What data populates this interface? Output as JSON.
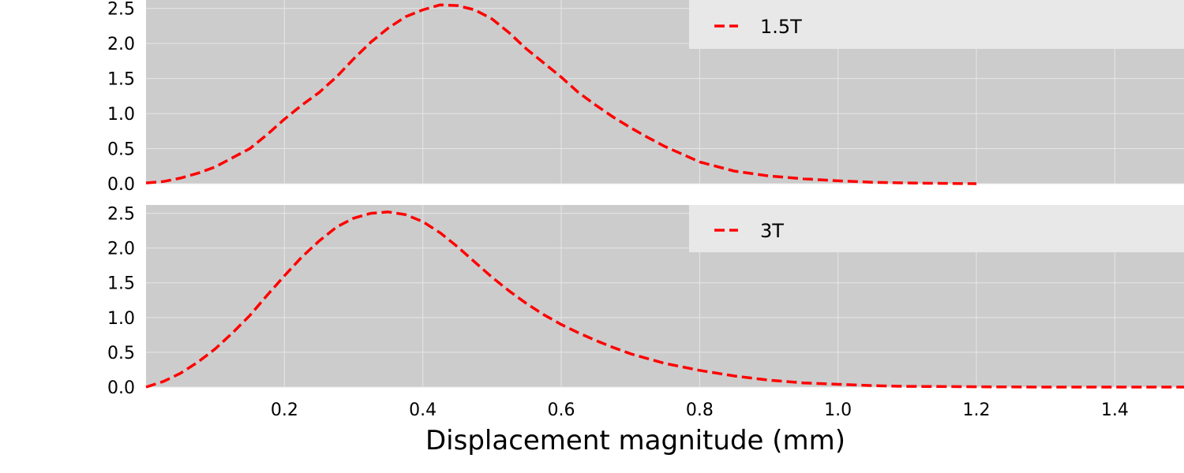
{
  "chart_data": [
    {
      "type": "line",
      "xlim": [
        0.0,
        1.5
      ],
      "ylim": [
        0.0,
        2.6
      ],
      "grid": true,
      "legend_placement": "top-right",
      "xticks": [
        "0.2",
        "0.4",
        "0.6",
        "0.8",
        "1.0",
        "1.2",
        "1.4"
      ],
      "yticks": [
        "0.0",
        "0.5",
        "1.0",
        "1.5",
        "2.0",
        "2.5"
      ],
      "series": [
        {
          "name": "1.5T",
          "color": "#ff0000",
          "style": "dashed",
          "x": [
            0.0,
            0.025,
            0.05,
            0.075,
            0.1,
            0.125,
            0.15,
            0.175,
            0.2,
            0.225,
            0.25,
            0.275,
            0.3,
            0.325,
            0.35,
            0.375,
            0.4,
            0.425,
            0.45,
            0.475,
            0.5,
            0.525,
            0.55,
            0.575,
            0.6,
            0.625,
            0.65,
            0.675,
            0.7,
            0.725,
            0.75,
            0.775,
            0.8,
            0.85,
            0.9,
            0.95,
            1.0,
            1.05,
            1.1,
            1.15,
            1.2
          ],
          "y": [
            0.01,
            0.03,
            0.08,
            0.15,
            0.24,
            0.37,
            0.5,
            0.7,
            0.92,
            1.12,
            1.3,
            1.52,
            1.78,
            2.02,
            2.22,
            2.38,
            2.48,
            2.55,
            2.54,
            2.48,
            2.35,
            2.15,
            1.92,
            1.72,
            1.52,
            1.3,
            1.12,
            0.95,
            0.8,
            0.66,
            0.53,
            0.42,
            0.31,
            0.18,
            0.11,
            0.07,
            0.04,
            0.02,
            0.01,
            0.005,
            0.0
          ]
        }
      ]
    },
    {
      "type": "line",
      "xlim": [
        0.0,
        1.5
      ],
      "ylim": [
        0.0,
        2.6
      ],
      "grid": true,
      "legend_placement": "top-right",
      "xlabel": "Displacement magnitude (mm)",
      "xticks": [
        "0.2",
        "0.4",
        "0.6",
        "0.8",
        "1.0",
        "1.2",
        "1.4"
      ],
      "yticks": [
        "0.0",
        "0.5",
        "1.0",
        "1.5",
        "2.0",
        "2.5"
      ],
      "series": [
        {
          "name": "3T",
          "color": "#ff0000",
          "style": "dashed",
          "x": [
            0.0,
            0.025,
            0.05,
            0.075,
            0.1,
            0.125,
            0.15,
            0.175,
            0.2,
            0.225,
            0.25,
            0.275,
            0.3,
            0.325,
            0.35,
            0.375,
            0.4,
            0.425,
            0.45,
            0.475,
            0.5,
            0.525,
            0.55,
            0.575,
            0.6,
            0.625,
            0.65,
            0.675,
            0.7,
            0.725,
            0.75,
            0.8,
            0.85,
            0.9,
            0.95,
            1.0,
            1.05,
            1.1,
            1.2,
            1.3,
            1.4,
            1.5
          ],
          "y": [
            0.0,
            0.08,
            0.2,
            0.36,
            0.55,
            0.78,
            1.03,
            1.32,
            1.6,
            1.87,
            2.1,
            2.3,
            2.43,
            2.5,
            2.52,
            2.48,
            2.38,
            2.22,
            2.02,
            1.8,
            1.58,
            1.38,
            1.2,
            1.04,
            0.9,
            0.78,
            0.67,
            0.57,
            0.48,
            0.41,
            0.34,
            0.24,
            0.16,
            0.1,
            0.06,
            0.04,
            0.02,
            0.01,
            0.005,
            0.0,
            0.0,
            0.0
          ]
        }
      ]
    }
  ]
}
